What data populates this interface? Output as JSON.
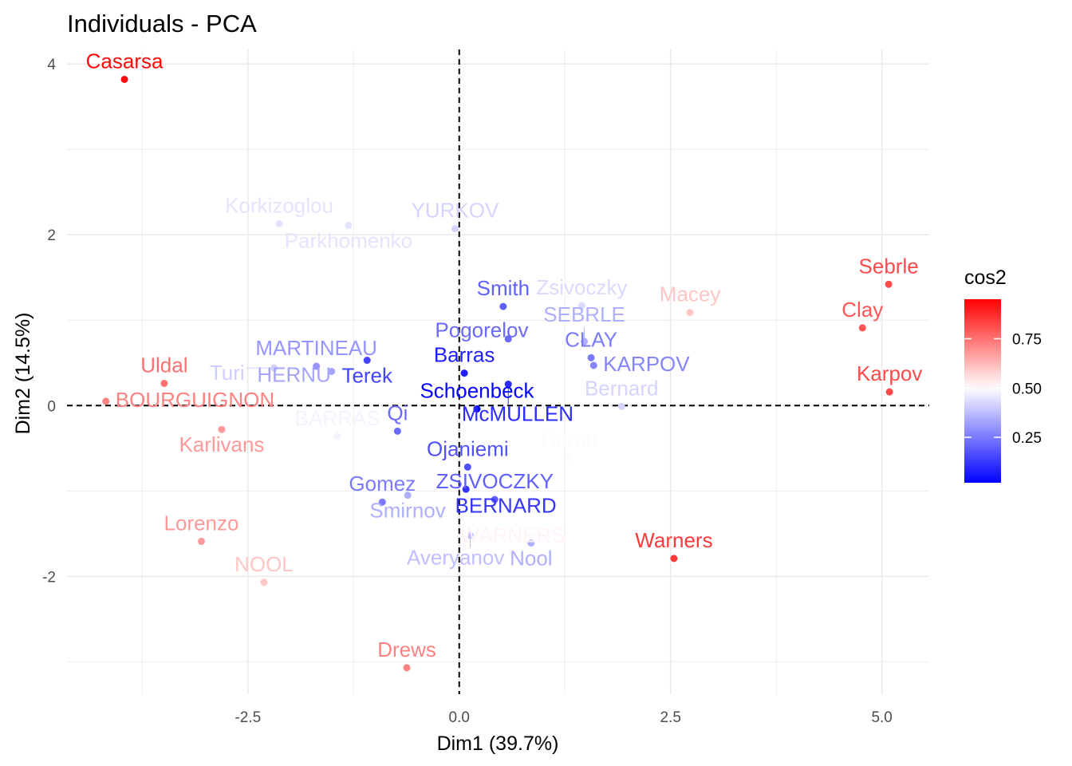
{
  "chart_data": {
    "type": "scatter",
    "title": "Individuals - PCA",
    "xlabel": "Dim1 (39.7%)",
    "ylabel": "Dim2 (14.5%)",
    "xlim": [
      -4.64,
      5.56
    ],
    "ylim": [
      -3.38,
      4.17
    ],
    "xticks": [
      -2.5,
      0,
      2.5,
      5
    ],
    "xtick_labels": [
      "-2.5",
      "0.0",
      "2.5",
      "5.0"
    ],
    "yticks": [
      -2,
      0,
      2,
      4
    ],
    "ytick_labels": [
      "-2",
      "0",
      "2",
      "4"
    ],
    "grid": true,
    "reference_lines": [
      {
        "axis": "x",
        "value": 0,
        "style": "dashed"
      },
      {
        "axis": "y",
        "value": 0,
        "style": "dashed"
      }
    ],
    "legend": {
      "title": "cos2",
      "placement": "right",
      "limits": [
        0.02,
        0.95
      ],
      "ticks": [
        0.25,
        0.5,
        0.75
      ],
      "tick_labels": [
        "0.25",
        "0.50",
        "0.75"
      ],
      "low_color": "#0000ff",
      "mid_color": "#ffffff",
      "high_color": "#ff0000",
      "midpoint": 0.5
    },
    "points": [
      {
        "label": "Casarsa",
        "x": -3.96,
        "y": 3.82,
        "cos2": 0.93
      },
      {
        "label": "Korkizoglou",
        "x": -2.13,
        "y": 2.13,
        "cos2": 0.45
      },
      {
        "label": "Parkhomenko",
        "x": -1.31,
        "y": 2.11,
        "cos2": 0.45
      },
      {
        "label": "YURKOV",
        "x": -0.05,
        "y": 2.07,
        "cos2": 0.42
      },
      {
        "label": "Smith",
        "x": 0.52,
        "y": 1.16,
        "cos2": 0.2
      },
      {
        "label": "Zsivoczky",
        "x": 1.45,
        "y": 1.17,
        "cos2": 0.43
      },
      {
        "label": "Macey",
        "x": 2.73,
        "y": 1.09,
        "cos2": 0.6
      },
      {
        "label": "Sebrle",
        "x": 5.08,
        "y": 1.42,
        "cos2": 0.82
      },
      {
        "label": "Clay",
        "x": 4.77,
        "y": 0.91,
        "cos2": 0.8
      },
      {
        "label": "Karpov",
        "x": 5.09,
        "y": 0.16,
        "cos2": 0.82
      },
      {
        "label": "Pogorelov",
        "x": 0.58,
        "y": 0.78,
        "cos2": 0.22
      },
      {
        "label": "SEBRLE",
        "x": 1.48,
        "y": 0.75,
        "cos2": 0.35
      },
      {
        "label": "CLAY",
        "x": 1.56,
        "y": 0.56,
        "cos2": 0.25
      },
      {
        "label": "KARPOV",
        "x": 1.59,
        "y": 0.47,
        "cos2": 0.27
      },
      {
        "label": "Terek",
        "x": -1.09,
        "y": 0.53,
        "cos2": 0.15
      },
      {
        "label": "MARTINEAU",
        "x": -1.69,
        "y": 0.46,
        "cos2": 0.3
      },
      {
        "label": "HERNU",
        "x": -1.51,
        "y": 0.4,
        "cos2": 0.33
      },
      {
        "label": "Turi",
        "x": -2.19,
        "y": 0.44,
        "cos2": 0.41
      },
      {
        "label": "Barras",
        "x": 0.06,
        "y": 0.38,
        "cos2": 0.08
      },
      {
        "label": "McMULLEN",
        "x": 0.58,
        "y": 0.25,
        "cos2": 0.1
      },
      {
        "label": "Schoenbeck",
        "x": 0.21,
        "y": -0.04,
        "cos2": 0.03
      },
      {
        "label": "Uldal",
        "x": -3.49,
        "y": 0.26,
        "cos2": 0.75
      },
      {
        "label": "BOURGUIGNON",
        "x": -4.18,
        "y": 0.05,
        "cos2": 0.72
      },
      {
        "label": "Karlivans",
        "x": -2.81,
        "y": -0.28,
        "cos2": 0.68
      },
      {
        "label": "BARRAS",
        "x": -1.44,
        "y": -0.36,
        "cos2": 0.48
      },
      {
        "label": "Qi",
        "x": -0.73,
        "y": -0.3,
        "cos2": 0.22
      },
      {
        "label": "Hernu",
        "x": 1.3,
        "y": -0.61,
        "cos2": 0.49
      },
      {
        "label": "Bernard",
        "x": 1.92,
        "y": -0.01,
        "cos2": 0.42
      },
      {
        "label": "Ojaniemi",
        "x": 0.1,
        "y": -0.72,
        "cos2": 0.17
      },
      {
        "label": "BERNARD",
        "x": 0.08,
        "y": -0.98,
        "cos2": 0.12
      },
      {
        "label": "Gomez",
        "x": -0.91,
        "y": -1.13,
        "cos2": 0.25
      },
      {
        "label": "Smirnov",
        "x": -0.61,
        "y": -1.05,
        "cos2": 0.35
      },
      {
        "label": "ZSIVOCZKY",
        "x": 0.42,
        "y": -1.1,
        "cos2": 0.2
      },
      {
        "label": "Averyanov",
        "x": 0.13,
        "y": -1.52,
        "cos2": 0.38
      },
      {
        "label": "Nool",
        "x": 0.85,
        "y": -1.61,
        "cos2": 0.35
      },
      {
        "label": "WARNERS",
        "x": 0.63,
        "y": -1.73,
        "cos2": 0.52
      },
      {
        "label": "Warners",
        "x": 2.54,
        "y": -1.79,
        "cos2": 0.85
      },
      {
        "label": "Lorenzo",
        "x": -3.05,
        "y": -1.59,
        "cos2": 0.68
      },
      {
        "label": "NOOL",
        "x": -2.31,
        "y": -2.07,
        "cos2": 0.6
      },
      {
        "label": "Drews",
        "x": -0.62,
        "y": -3.07,
        "cos2": 0.72
      }
    ]
  }
}
